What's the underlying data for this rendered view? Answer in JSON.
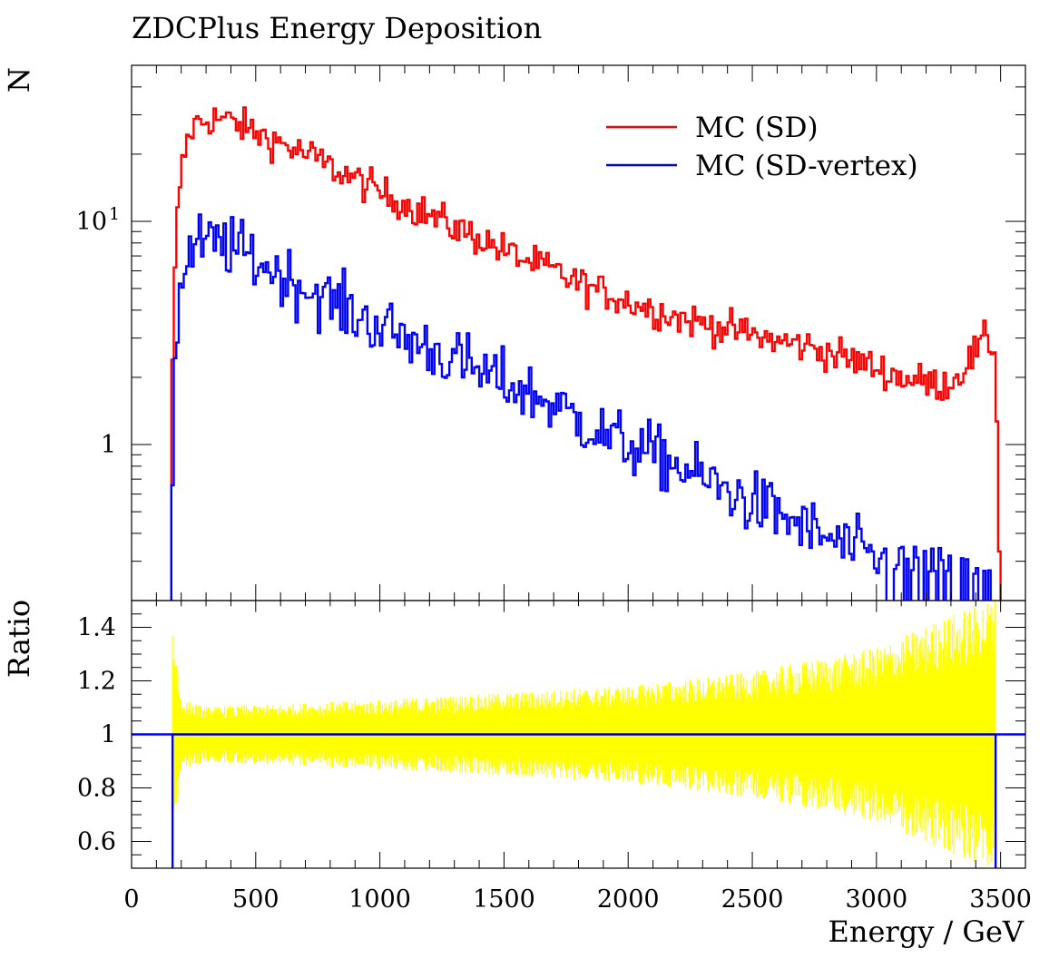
{
  "chart_data": [
    {
      "type": "line",
      "panel": "main",
      "title": "ZDCPlus Energy Deposition",
      "ylabel": "N",
      "yscale": "log",
      "ylim": [
        0.2,
        50
      ],
      "xlim": [
        0,
        3600
      ],
      "yticks": [
        {
          "value": 10,
          "label": "10"
        },
        {
          "value": 1,
          "label": "1"
        }
      ],
      "ytick_exponent": "1",
      "legend_position": "top-right",
      "series": [
        {
          "name": "MC (SD)",
          "color": "#ff0000",
          "x": [
            160,
            170,
            180,
            190,
            200,
            220,
            240,
            260,
            280,
            300,
            350,
            400,
            450,
            500,
            550,
            600,
            650,
            700,
            750,
            800,
            850,
            900,
            950,
            1000,
            1050,
            1100,
            1150,
            1200,
            1250,
            1300,
            1350,
            1400,
            1450,
            1500,
            1550,
            1600,
            1650,
            1700,
            1750,
            1800,
            1850,
            1900,
            1950,
            2000,
            2050,
            2100,
            2150,
            2200,
            2250,
            2300,
            2350,
            2400,
            2450,
            2500,
            2550,
            2600,
            2650,
            2700,
            2750,
            2800,
            2850,
            2900,
            2950,
            3000,
            3050,
            3100,
            3150,
            3200,
            3250,
            3300,
            3350,
            3400,
            3450,
            3480,
            3500
          ],
          "y": [
            1.2,
            4.0,
            8.5,
            13.0,
            16.5,
            22.0,
            25.5,
            27.5,
            28.0,
            28.5,
            29.0,
            28.0,
            26.5,
            25.0,
            23.5,
            22.5,
            21.0,
            20.0,
            19.0,
            17.5,
            16.5,
            15.5,
            14.5,
            13.5,
            12.7,
            12.0,
            11.3,
            10.6,
            10.0,
            9.4,
            8.9,
            8.4,
            7.9,
            7.4,
            7.0,
            6.6,
            6.3,
            6.0,
            5.6,
            5.3,
            5.0,
            4.8,
            4.6,
            4.4,
            4.2,
            4.0,
            3.9,
            3.7,
            3.6,
            3.5,
            3.4,
            3.3,
            3.2,
            3.1,
            3.0,
            2.9,
            2.85,
            2.8,
            2.7,
            2.6,
            2.5,
            2.4,
            2.3,
            2.2,
            2.1,
            2.0,
            1.95,
            1.9,
            1.85,
            1.9,
            2.2,
            2.6,
            3.0,
            2.5,
            0.2
          ]
        },
        {
          "name": "MC (SD-vertex)",
          "color": "#0000ff",
          "x": [
            160,
            170,
            180,
            190,
            200,
            220,
            240,
            260,
            280,
            300,
            350,
            400,
            450,
            500,
            550,
            600,
            650,
            700,
            750,
            800,
            850,
            900,
            950,
            1000,
            1050,
            1100,
            1150,
            1200,
            1250,
            1300,
            1350,
            1400,
            1450,
            1500,
            1550,
            1600,
            1650,
            1700,
            1750,
            1800,
            1850,
            1900,
            1950,
            2000,
            2050,
            2100,
            2150,
            2200,
            2250,
            2300,
            2350,
            2400,
            2450,
            2500,
            2550,
            2600,
            2650,
            2700,
            2750,
            2800,
            2850,
            2900,
            2950,
            3000,
            3050,
            3100,
            3150,
            3200,
            3250,
            3300,
            3350,
            3400,
            3450,
            3480
          ],
          "y": [
            0.3,
            1.5,
            3.0,
            4.2,
            5.2,
            6.5,
            7.2,
            7.6,
            7.8,
            7.9,
            8.0,
            7.7,
            7.2,
            6.7,
            6.2,
            5.8,
            5.4,
            5.0,
            4.7,
            4.4,
            4.1,
            3.8,
            3.6,
            3.4,
            3.2,
            3.0,
            2.85,
            2.7,
            2.55,
            2.4,
            2.25,
            2.1,
            2.0,
            1.9,
            1.8,
            1.7,
            1.6,
            1.5,
            1.4,
            1.3,
            1.2,
            1.1,
            1.05,
            1.0,
            0.95,
            0.9,
            0.85,
            0.8,
            0.75,
            0.7,
            0.66,
            0.62,
            0.58,
            0.55,
            0.52,
            0.49,
            0.46,
            0.43,
            0.4,
            0.38,
            0.36,
            0.34,
            0.32,
            0.3,
            0.29,
            0.28,
            0.27,
            0.26,
            0.25,
            0.25,
            0.24,
            0.24,
            0.23,
            0.23
          ]
        }
      ]
    },
    {
      "type": "area",
      "panel": "ratio",
      "ylabel": "Ratio",
      "xlabel": "Energy / GeV",
      "xlim": [
        0,
        3600
      ],
      "ylim": [
        0.5,
        1.5
      ],
      "xticks": [
        "0",
        "500",
        "1000",
        "1500",
        "2000",
        "2500",
        "3000",
        "3500"
      ],
      "yticks": [
        "0.6",
        "0.8",
        "1",
        "1.2",
        "1.4"
      ],
      "band_color": "#ffff00",
      "line_color": "#0000ff",
      "reference": 1.0,
      "band_half_width": {
        "x": [
          165,
          200,
          300,
          500,
          1000,
          1500,
          2000,
          2500,
          3000,
          3250,
          3480
        ],
        "y": [
          0.35,
          0.1,
          0.08,
          0.085,
          0.1,
          0.12,
          0.14,
          0.18,
          0.25,
          0.33,
          0.4
        ]
      }
    }
  ]
}
